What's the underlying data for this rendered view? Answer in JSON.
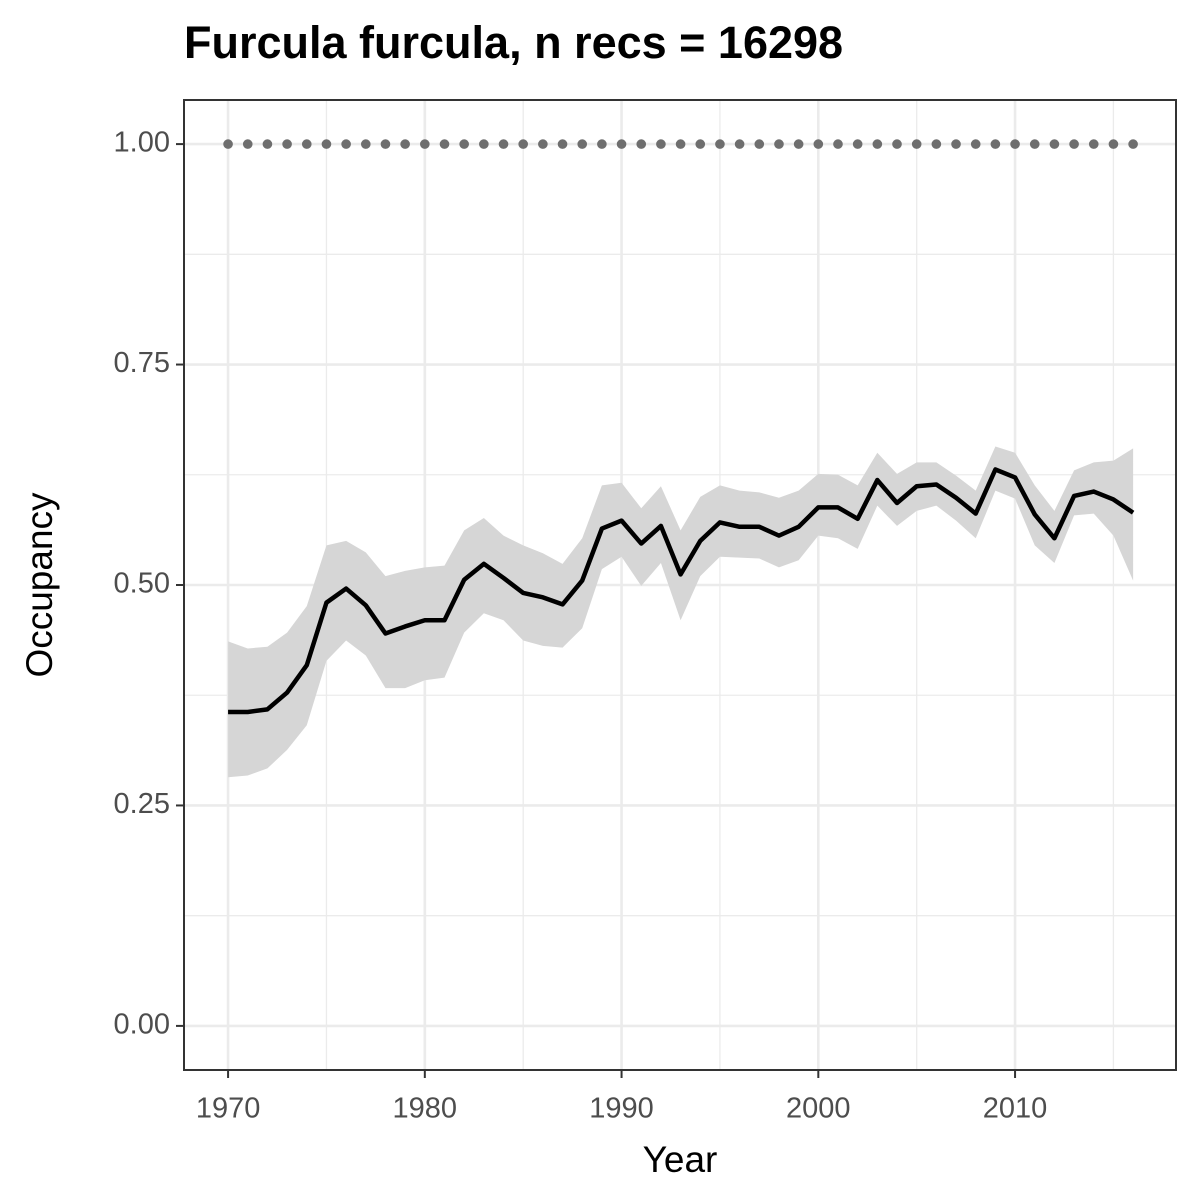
{
  "chart_data": {
    "type": "line",
    "title": "Furcula furcula, n recs = 16298",
    "xlabel": "Year",
    "ylabel": "Occupancy",
    "x": [
      1970,
      1971,
      1972,
      1973,
      1974,
      1975,
      1976,
      1977,
      1978,
      1979,
      1980,
      1981,
      1982,
      1983,
      1984,
      1985,
      1986,
      1987,
      1988,
      1989,
      1990,
      1991,
      1992,
      1993,
      1994,
      1995,
      1996,
      1997,
      1998,
      1999,
      2000,
      2001,
      2002,
      2003,
      2004,
      2005,
      2006,
      2007,
      2008,
      2009,
      2010,
      2011,
      2012,
      2013,
      2014,
      2015,
      2016
    ],
    "series": [
      {
        "color": "#000000",
        "band_color": "#d6d6d6",
        "values": [
          0.356,
          0.356,
          0.359,
          0.378,
          0.409,
          0.48,
          0.496,
          0.477,
          0.445,
          0.453,
          0.46,
          0.46,
          0.506,
          0.524,
          0.508,
          0.491,
          0.486,
          0.478,
          0.505,
          0.564,
          0.573,
          0.547,
          0.567,
          0.512,
          0.55,
          0.571,
          0.566,
          0.566,
          0.556,
          0.566,
          0.588,
          0.588,
          0.575,
          0.619,
          0.593,
          0.612,
          0.614,
          0.599,
          0.581,
          0.631,
          0.622,
          0.58,
          0.553,
          0.601,
          0.606,
          0.597,
          0.582
        ],
        "lower": [
          0.282,
          0.284,
          0.292,
          0.313,
          0.341,
          0.414,
          0.437,
          0.42,
          0.383,
          0.383,
          0.392,
          0.395,
          0.446,
          0.468,
          0.46,
          0.437,
          0.431,
          0.429,
          0.451,
          0.518,
          0.532,
          0.499,
          0.525,
          0.46,
          0.51,
          0.532,
          0.531,
          0.53,
          0.52,
          0.528,
          0.556,
          0.553,
          0.541,
          0.59,
          0.567,
          0.584,
          0.59,
          0.573,
          0.553,
          0.607,
          0.598,
          0.545,
          0.525,
          0.579,
          0.581,
          0.556,
          0.505
        ],
        "upper": [
          0.436,
          0.428,
          0.43,
          0.446,
          0.476,
          0.545,
          0.55,
          0.537,
          0.51,
          0.516,
          0.52,
          0.522,
          0.562,
          0.576,
          0.556,
          0.545,
          0.536,
          0.524,
          0.553,
          0.613,
          0.616,
          0.587,
          0.612,
          0.562,
          0.6,
          0.613,
          0.607,
          0.605,
          0.599,
          0.607,
          0.626,
          0.625,
          0.613,
          0.65,
          0.626,
          0.639,
          0.639,
          0.624,
          0.607,
          0.657,
          0.65,
          0.613,
          0.584,
          0.63,
          0.639,
          0.641,
          0.655
        ]
      },
      {
        "color": "#6e6e6e",
        "marker": "points",
        "values": [
          1,
          1,
          1,
          1,
          1,
          1,
          1,
          1,
          1,
          1,
          1,
          1,
          1,
          1,
          1,
          1,
          1,
          1,
          1,
          1,
          1,
          1,
          1,
          1,
          1,
          1,
          1,
          1,
          1,
          1,
          1,
          1,
          1,
          1,
          1,
          1,
          1,
          1,
          1,
          1,
          1,
          1,
          1,
          1,
          1,
          1,
          1
        ]
      }
    ],
    "xlim": [
      1967.76,
      2018.18
    ],
    "xticks": [
      1970,
      1980,
      1990,
      2000,
      2010
    ],
    "ylim": [
      -0.05,
      1.05
    ],
    "yticks": [
      {
        "value": 0,
        "label": "0.00"
      },
      {
        "value": 0.25,
        "label": "0.25"
      },
      {
        "value": 0.5,
        "label": "0.50"
      },
      {
        "value": 0.75,
        "label": "0.75"
      },
      {
        "value": 1,
        "label": "1.00"
      }
    ],
    "grid": true,
    "minor_grid": true
  }
}
